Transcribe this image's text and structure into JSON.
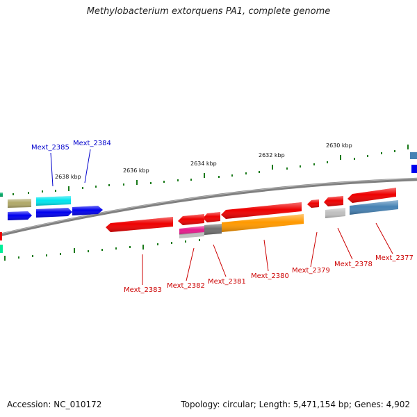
{
  "title": "Methylobacterium extorquens PA1, complete genome",
  "footer": {
    "accession": "Accession: NC_010172",
    "stats": "Topology: circular; Length: 5,471,154 bp; Genes: 4,902"
  },
  "ruler": [
    "2630 kbp",
    "2632 kbp",
    "2634 kbp",
    "2636 kbp",
    "2638 kbp"
  ],
  "labels": {
    "top": [
      "Mext_2385",
      "Mext_2384"
    ],
    "bottom": [
      "Mext_2383",
      "Mext_2382",
      "Mext_2381",
      "Mext_2380",
      "Mext_2379",
      "Mext_2378",
      "Mext_2377"
    ]
  },
  "colors": {
    "label_top": "#0000cc",
    "label_bottom": "#cc0000",
    "backbone": "#808080",
    "tick": "#1a7a1a"
  }
}
